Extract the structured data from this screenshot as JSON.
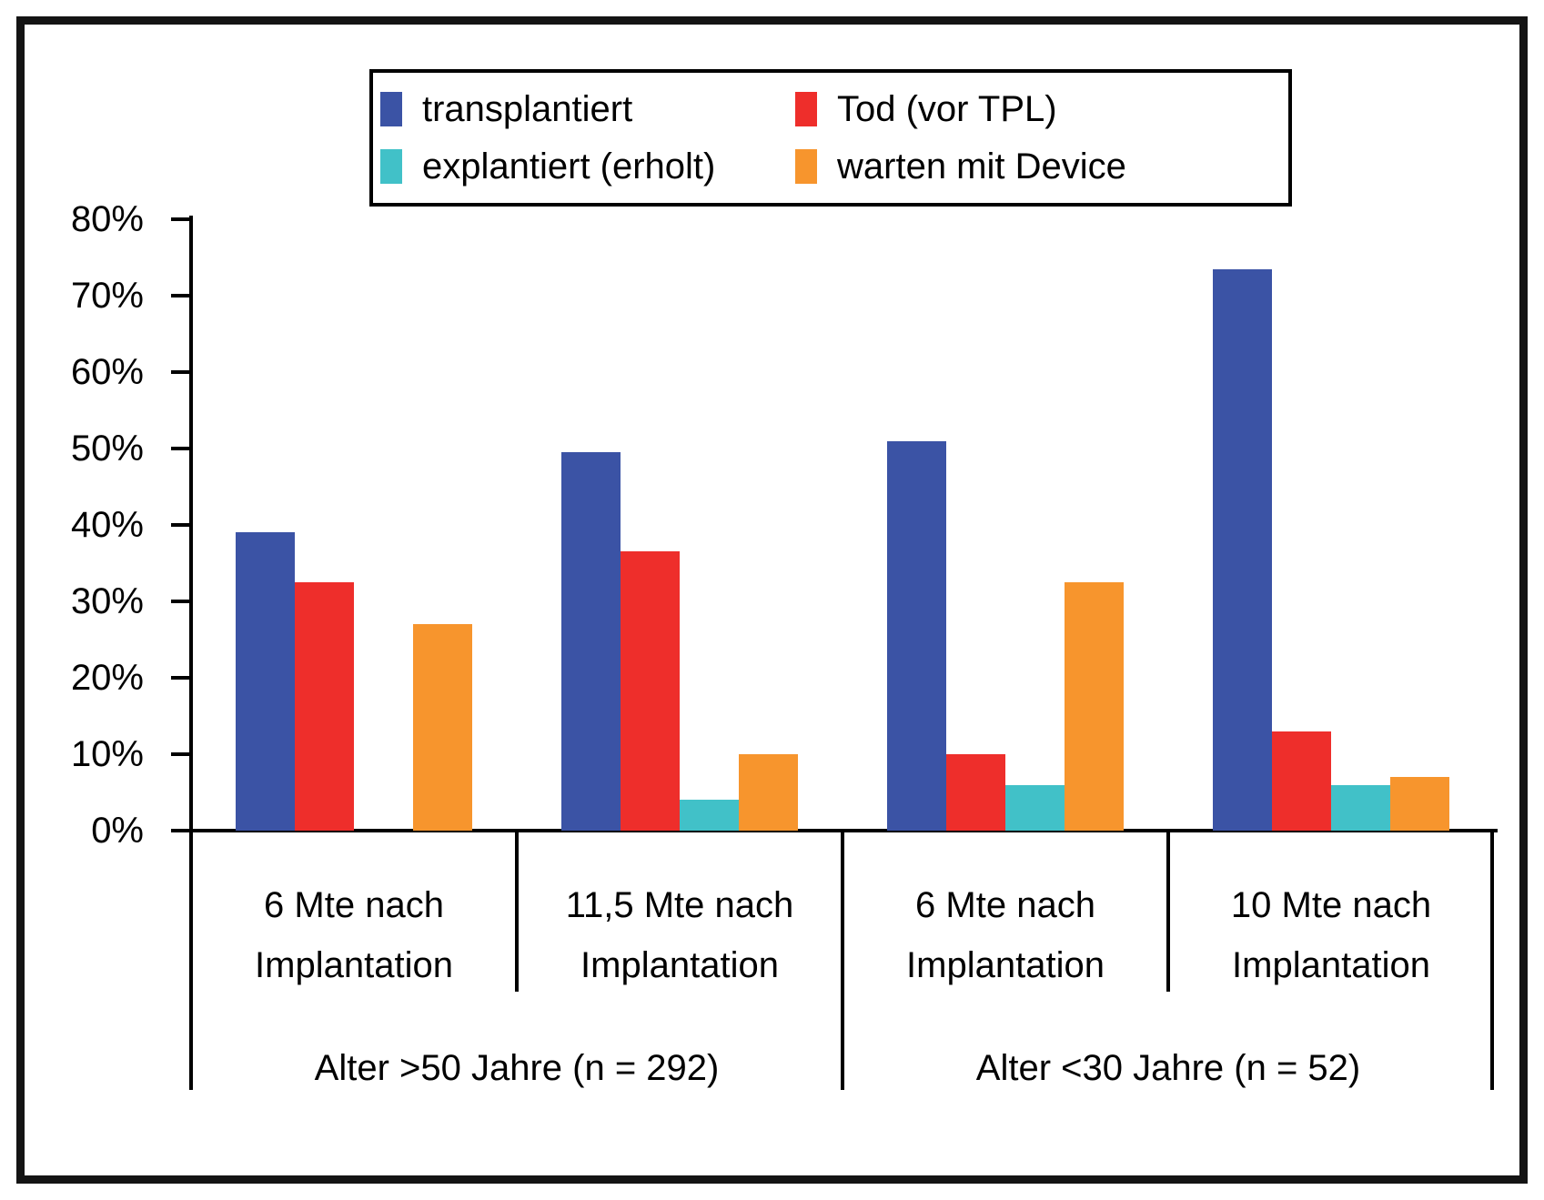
{
  "chart_data": {
    "type": "bar",
    "title": "",
    "unit": "%",
    "ylim": [
      0,
      80
    ],
    "ytick_step": 10,
    "ytick_labels": [
      "0%",
      "10%",
      "20%",
      "30%",
      "40%",
      "50%",
      "60%",
      "70%",
      "80%"
    ],
    "grid": false,
    "legend_position": "top-center",
    "categories": [
      {
        "line1": "6 Mte nach",
        "line2": "Implantation",
        "group": "Alter >50 Jahre (n = 292)"
      },
      {
        "line1": "11,5 Mte nach",
        "line2": "Implantation",
        "group": "Alter >50 Jahre (n = 292)"
      },
      {
        "line1": "6 Mte nach",
        "line2": "Implantation",
        "group": "Alter <30 Jahre (n = 52)"
      },
      {
        "line1": "10 Mte nach",
        "line2": "Implantation",
        "group": "Alter <30 Jahre (n = 52)"
      }
    ],
    "group_labels": [
      "Alter >50 Jahre (n = 292)",
      "Alter <30 Jahre (n = 52)"
    ],
    "series": [
      {
        "name": "transplantiert",
        "id": "transplantiert",
        "color": "#3B53A5",
        "values": [
          39,
          49.5,
          51,
          73.5
        ]
      },
      {
        "name": "Tod (vor TPL)",
        "id": "tod-vor-tpl",
        "color": "#EE2E2B",
        "values": [
          32.5,
          36.5,
          10,
          13
        ]
      },
      {
        "name": "explantiert (erholt)",
        "id": "explantiert-erholt",
        "color": "#41C1C8",
        "values": [
          null,
          4,
          6,
          6
        ]
      },
      {
        "name": "warten mit Device",
        "id": "warten-mit-device",
        "color": "#F7952D",
        "values": [
          27,
          10,
          32.5,
          7
        ]
      }
    ]
  },
  "colors": {
    "axis": "#000000",
    "frame": "#141414",
    "background": "#ffffff"
  }
}
